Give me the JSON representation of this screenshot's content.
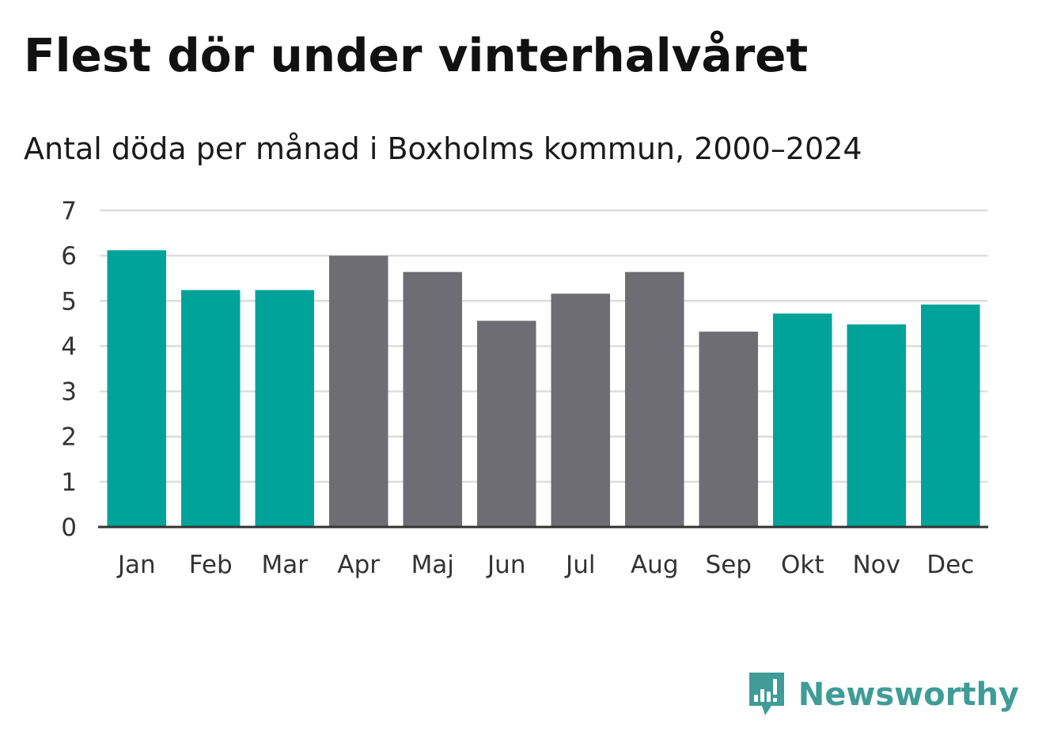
{
  "header": {
    "title": "Flest dör under vinterhalvåret",
    "subtitle": "Antal döda per månad i Boxholms kommun, 2000–2024"
  },
  "colors": {
    "winter": "#00a39a",
    "summer": "#6e6d73",
    "grid": "#dddddd",
    "axis": "#333333",
    "brand": "#3f9c96"
  },
  "logo": {
    "text": "Newsworthy",
    "icon": "bar-chart-speech-bubble-icon"
  },
  "chart_data": {
    "type": "bar",
    "title": "Flest dör under vinterhalvåret",
    "subtitle": "Antal döda per månad i Boxholms kommun, 2000–2024",
    "xlabel": "",
    "ylabel": "",
    "ylim": [
      0,
      7
    ],
    "yticks": [
      0,
      1,
      2,
      3,
      4,
      5,
      6,
      7
    ],
    "grid": true,
    "legend": "none",
    "categories": [
      "Jan",
      "Feb",
      "Mar",
      "Apr",
      "Maj",
      "Jun",
      "Jul",
      "Aug",
      "Sep",
      "Okt",
      "Nov",
      "Dec"
    ],
    "values": [
      6.12,
      5.24,
      5.24,
      6.0,
      5.64,
      4.56,
      5.16,
      5.64,
      4.32,
      4.72,
      4.48,
      4.92
    ],
    "groups": [
      "winter",
      "winter",
      "winter",
      "summer",
      "summer",
      "summer",
      "summer",
      "summer",
      "summer",
      "winter",
      "winter",
      "winter"
    ]
  }
}
